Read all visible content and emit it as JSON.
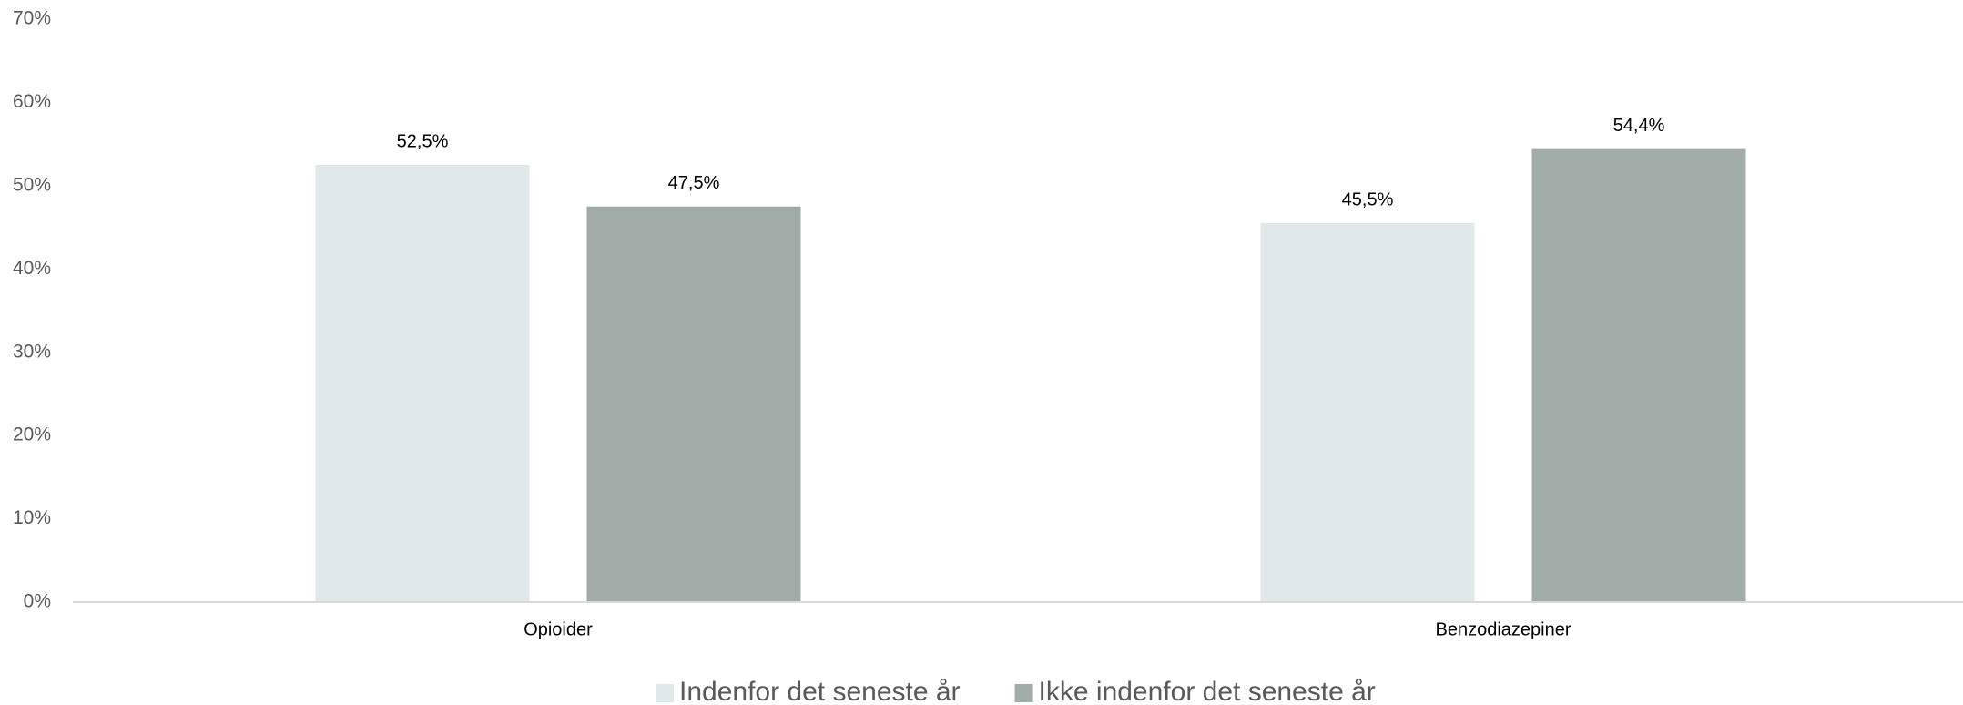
{
  "chart_data": {
    "type": "bar",
    "categories": [
      "Opioider",
      "Benzodiazepiner"
    ],
    "series": [
      {
        "name": "Indenfor det seneste år",
        "color": "#e0e9e9",
        "values": [
          52.5,
          45.5
        ],
        "value_labels": [
          "52,5%",
          "45,5%"
        ]
      },
      {
        "name": "Ikke indenfor det seneste år",
        "color": "#a1aba8",
        "values": [
          47.5,
          54.4
        ],
        "value_labels": [
          "47,5%",
          "54,4%"
        ]
      }
    ],
    "ylim": [
      0,
      70
    ],
    "yticks": [
      {
        "value": 0,
        "label": "0%"
      },
      {
        "value": 10,
        "label": "10%"
      },
      {
        "value": 20,
        "label": "20%"
      },
      {
        "value": 30,
        "label": "30%"
      },
      {
        "value": 40,
        "label": "40%"
      },
      {
        "value": 50,
        "label": "50%"
      },
      {
        "value": 60,
        "label": "60%"
      },
      {
        "value": 70,
        "label": "70%"
      }
    ],
    "grid": false,
    "legend": "bottom"
  }
}
